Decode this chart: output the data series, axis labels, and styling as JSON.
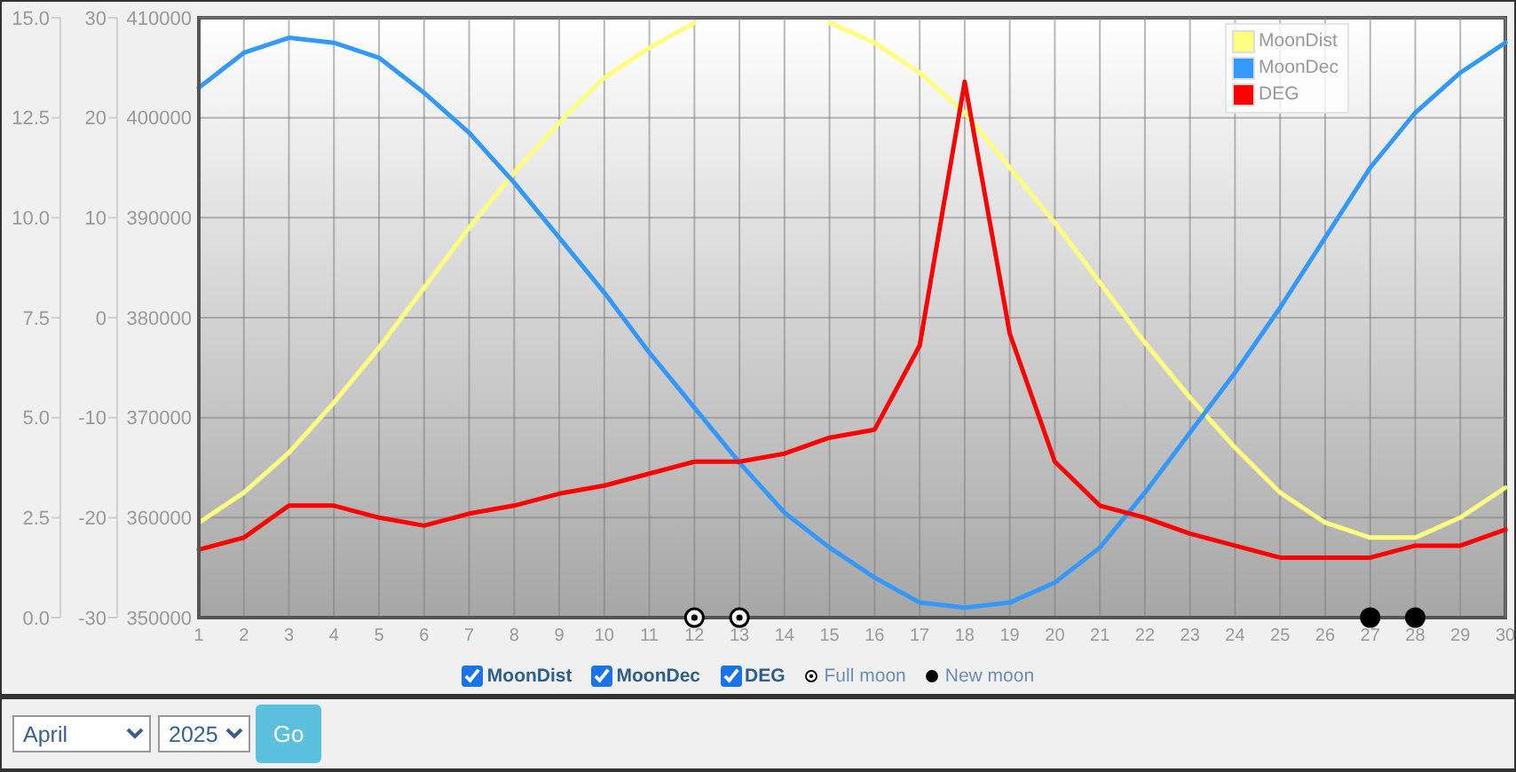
{
  "chart_data": {
    "type": "line",
    "x": [
      1,
      2,
      3,
      4,
      5,
      6,
      7,
      8,
      9,
      10,
      11,
      12,
      13,
      14,
      15,
      16,
      17,
      18,
      19,
      20,
      21,
      22,
      23,
      24,
      25,
      26,
      27,
      28,
      29,
      30
    ],
    "xlim": [
      1,
      30
    ],
    "xticks": [
      1,
      2,
      3,
      4,
      5,
      6,
      7,
      8,
      9,
      10,
      11,
      12,
      13,
      14,
      15,
      16,
      17,
      18,
      19,
      20,
      21,
      22,
      23,
      24,
      25,
      26,
      27,
      28,
      29,
      30
    ],
    "ylim": [
      350000,
      410000
    ],
    "yticks": [
      350000,
      360000,
      370000,
      380000,
      390000,
      400000,
      410000
    ],
    "y2lim": [
      -30,
      30
    ],
    "y2ticks": [
      -30,
      -20,
      -10,
      0,
      10,
      20,
      30
    ],
    "y3lim": [
      0,
      15
    ],
    "y3ticks": [
      {
        "value": 0,
        "label": "0.0"
      },
      2.5,
      {
        "value": 5,
        "label": "5.0"
      },
      7.5,
      {
        "value": 10,
        "label": "10.0"
      },
      12.5,
      {
        "value": 15,
        "label": "15.0"
      }
    ],
    "grid": true,
    "legend": "bottom",
    "series": [
      {
        "name": "MoonDist",
        "color": "#ffff80",
        "values": [
          359500,
          362500,
          366500,
          371500,
          377000,
          383000,
          389000,
          394500,
          399500,
          404000,
          407000,
          409500,
          null,
          null,
          409500,
          407500,
          404500,
          400500,
          395000,
          389500,
          383500,
          377500,
          372000,
          367000,
          362500,
          359500,
          358000,
          358000,
          360000,
          363000
        ]
      },
      {
        "name": "MoonDec",
        "color": "#3399ff",
        "axis": "y2",
        "values": [
          23,
          26.5,
          28,
          27.5,
          26,
          22.5,
          18.5,
          13.5,
          8,
          2.5,
          -3.5,
          -9,
          -14.5,
          -19.5,
          -23,
          -26,
          -28.5,
          -29,
          -28.5,
          -26.5,
          -23,
          -17.5,
          -11.5,
          -5.5,
          1,
          8,
          15,
          20.5,
          24.5,
          27.5
        ]
      },
      {
        "name": "DEG",
        "color": "#ff0000",
        "axis": "y3",
        "values": [
          1.7,
          2,
          2.8,
          2.8,
          2.5,
          2.3,
          2.6,
          2.8,
          3.1,
          3.3,
          3.6,
          3.9,
          3.9,
          4.1,
          4.5,
          4.7,
          6.8,
          13.4,
          7.1,
          3.9,
          2.8,
          2.5,
          2.1,
          1.8,
          1.5,
          1.5,
          1.5,
          1.8,
          1.8,
          2.2
        ]
      },
      {
        "name": "Full moon",
        "type": "scatter",
        "marker": "circle",
        "color": "#ffffff",
        "x": [
          12,
          13
        ],
        "values": [
          350000,
          350000
        ]
      },
      {
        "name": "New moon",
        "type": "scatter",
        "marker": "circle",
        "color": "#000000",
        "x": [
          27,
          28
        ],
        "values": [
          350000,
          350000
        ]
      }
    ],
    "annotations": [
      "April",
      "2025",
      "Go"
    ]
  }
}
